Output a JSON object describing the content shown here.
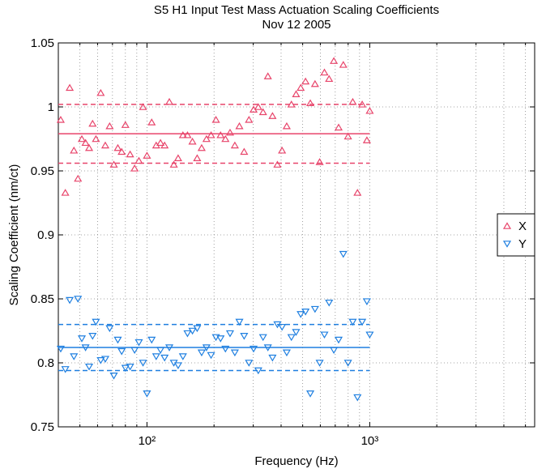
{
  "chart_data": {
    "type": "scatter",
    "title": "S5 H1 Input Test Mass Actuation Scaling Coefficients",
    "subtitle": "Nov 12 2005",
    "x_label": "Frequency (Hz)",
    "y_label": "Scaling Coefficient (nm/ct)",
    "log_x": true,
    "grid": true,
    "legend": "right",
    "xlim": [
      40,
      5500
    ],
    "ylim": [
      0.75,
      1.05
    ],
    "xticks": [
      {
        "value": 100,
        "label": "10²"
      },
      {
        "value": 1000,
        "label": "10³"
      }
    ],
    "xminorticks": [
      50,
      60,
      70,
      80,
      90,
      200,
      300,
      400,
      500,
      600,
      700,
      800,
      900,
      2000,
      3000,
      4000,
      5000
    ],
    "yticks": [
      0.75,
      0.8,
      0.85,
      0.9,
      0.95,
      1,
      1.05
    ],
    "x": [
      41,
      43,
      45,
      47,
      49,
      51,
      53,
      55,
      57,
      59,
      62,
      65,
      68,
      71,
      74,
      77,
      80,
      84,
      88,
      92,
      96,
      100,
      105,
      110,
      115,
      120,
      126,
      132,
      138,
      145,
      152,
      160,
      168,
      176,
      185,
      194,
      204,
      214,
      225,
      236,
      248,
      260,
      273,
      287,
      301,
      316,
      332,
      349,
      366,
      385,
      404,
      424,
      445,
      467,
      490,
      515,
      541,
      568,
      596,
      626,
      657,
      690,
      725,
      761,
      799,
      839,
      881,
      925,
      971,
      1000
    ],
    "series": [
      {
        "name": "X",
        "color": "#e8456b",
        "marker": "triangle-up",
        "mean": 0.979,
        "bounds": [
          0.956,
          1.002
        ],
        "values": [
          0.99,
          0.933,
          1.015,
          0.966,
          0.944,
          0.975,
          0.972,
          0.968,
          0.987,
          0.975,
          1.011,
          0.97,
          0.985,
          0.955,
          0.968,
          0.965,
          0.986,
          0.963,
          0.952,
          0.958,
          1.0,
          0.962,
          0.988,
          0.97,
          0.972,
          0.97,
          1.004,
          0.955,
          0.96,
          0.978,
          0.978,
          0.973,
          0.96,
          0.968,
          0.975,
          0.978,
          0.99,
          0.978,
          0.975,
          0.98,
          0.97,
          0.985,
          0.965,
          0.99,
          0.998,
          1.0,
          0.996,
          1.024,
          0.993,
          0.955,
          0.966,
          0.985,
          1.002,
          1.01,
          1.015,
          1.02,
          1.003,
          1.018,
          0.957,
          1.027,
          1.022,
          1.036,
          0.984,
          1.033,
          0.977,
          1.004,
          0.933,
          1.002,
          0.974,
          0.997
        ]
      },
      {
        "name": "Y",
        "color": "#1e7fe0",
        "marker": "triangle-down",
        "mean": 0.812,
        "bounds": [
          0.794,
          0.83
        ],
        "values": [
          0.811,
          0.795,
          0.849,
          0.805,
          0.85,
          0.819,
          0.812,
          0.797,
          0.821,
          0.832,
          0.802,
          0.803,
          0.827,
          0.79,
          0.818,
          0.809,
          0.796,
          0.797,
          0.81,
          0.816,
          0.8,
          0.776,
          0.818,
          0.805,
          0.81,
          0.804,
          0.812,
          0.8,
          0.798,
          0.805,
          0.823,
          0.825,
          0.827,
          0.808,
          0.812,
          0.806,
          0.82,
          0.819,
          0.811,
          0.823,
          0.808,
          0.832,
          0.821,
          0.8,
          0.811,
          0.794,
          0.82,
          0.812,
          0.804,
          0.83,
          0.828,
          0.808,
          0.82,
          0.824,
          0.838,
          0.84,
          0.776,
          0.842,
          0.8,
          0.822,
          0.847,
          0.81,
          0.818,
          0.885,
          0.8,
          0.832,
          0.773,
          0.832,
          0.848,
          0.822
        ]
      }
    ]
  }
}
